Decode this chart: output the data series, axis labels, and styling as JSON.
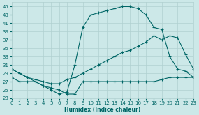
{
  "xlabel": "Humidex (Indice chaleur)",
  "xlim": [
    0,
    23
  ],
  "ylim": [
    23,
    46
  ],
  "xticks": [
    0,
    1,
    2,
    3,
    4,
    5,
    6,
    7,
    8,
    9,
    10,
    11,
    12,
    13,
    14,
    15,
    16,
    17,
    18,
    19,
    20,
    21,
    22,
    23
  ],
  "yticks": [
    23,
    25,
    27,
    29,
    31,
    33,
    35,
    37,
    39,
    41,
    43,
    45
  ],
  "bg_color": "#cce8e8",
  "grid_color": "#b0d0d0",
  "line_color": "#006666",
  "line1_x": [
    0,
    1,
    2,
    3,
    4,
    5,
    6,
    7,
    8,
    9,
    10,
    11,
    12,
    13,
    14,
    15,
    16,
    17,
    18,
    19,
    20,
    21,
    22,
    23
  ],
  "line1_y": [
    30,
    29,
    28,
    27,
    26,
    25,
    24,
    24.5,
    31,
    40,
    43,
    43.5,
    44,
    44.5,
    45,
    45,
    44.5,
    43,
    40,
    39.5,
    33,
    30,
    29.5,
    28
  ],
  "line2_x": [
    0,
    1,
    2,
    3,
    4,
    5,
    6,
    7,
    8,
    9,
    10,
    11,
    12,
    13,
    14,
    15,
    16,
    17,
    18,
    19,
    20,
    21,
    22,
    23
  ],
  "line2_y": [
    30,
    29,
    28,
    27.5,
    27,
    26.5,
    26.5,
    27.5,
    28,
    29,
    30,
    31,
    32,
    33,
    34,
    34.5,
    35.5,
    36.5,
    38,
    37,
    38,
    37.5,
    33.5,
    30
  ],
  "line3_x": [
    0,
    1,
    2,
    3,
    4,
    5,
    6,
    7,
    8,
    9,
    10,
    11,
    12,
    13,
    14,
    15,
    16,
    17,
    18,
    19,
    20,
    21,
    22,
    23
  ],
  "line3_y": [
    28,
    27,
    27,
    27,
    26,
    25.5,
    25,
    24,
    24,
    27,
    27,
    27,
    27,
    27,
    27,
    27,
    27,
    27,
    27,
    27.5,
    28,
    28,
    28,
    28
  ]
}
